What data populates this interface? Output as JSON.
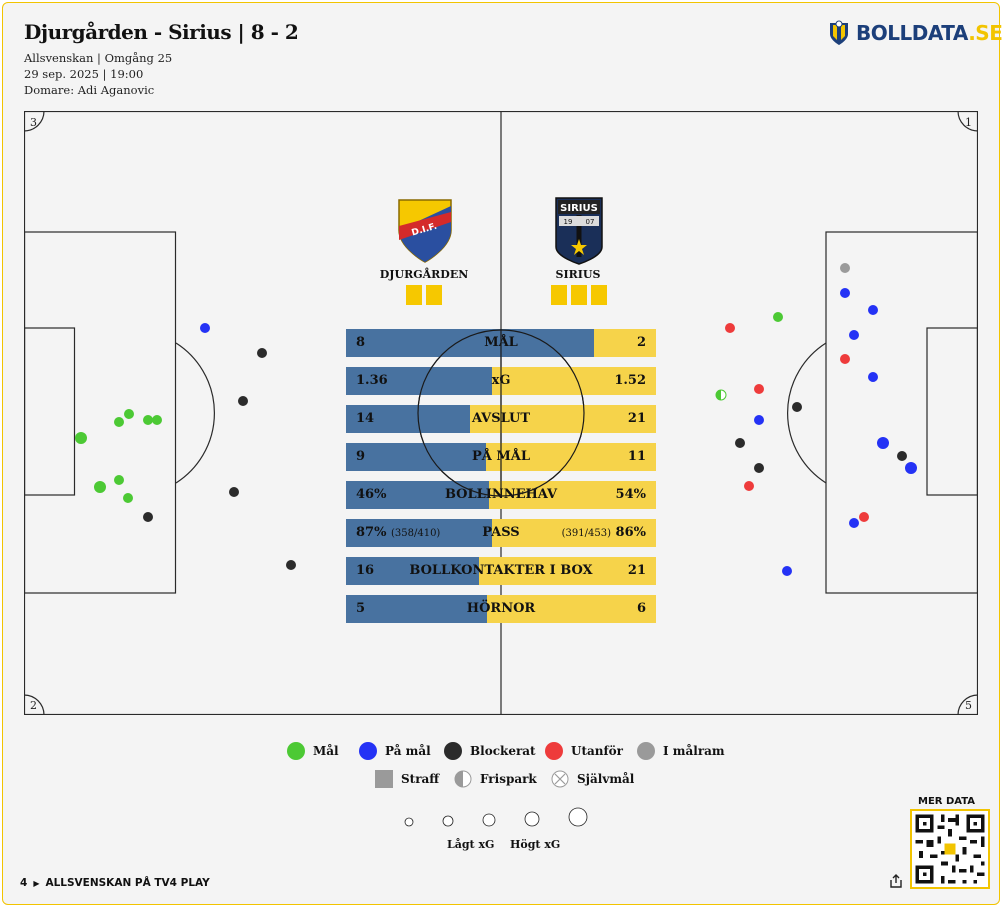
{
  "header": {
    "title": "Djurgården - Sirius | 8 - 2",
    "competition": "Allsvenskan | Omgång 25",
    "datetime": "29 sep. 2025 | 19:00",
    "referee": "Domare: Adi Aganovic"
  },
  "brand": {
    "name": "BOLLDATA",
    "tld": ".SE",
    "color": "#1c3f7a",
    "accent": "#f2c400"
  },
  "teams": {
    "home": {
      "name": "DJURGÅRDEN",
      "badge_text": "D.I.F.",
      "yellow_cards": 2,
      "color": "#4872a0"
    },
    "away": {
      "name": "SIRIUS",
      "badge_text": "SIRIUS",
      "badge_year_left": "19",
      "badge_year_right": "07",
      "yellow_cards": 3,
      "color": "#f6d34a"
    }
  },
  "corners": {
    "top_left": "3",
    "top_right": "1",
    "bottom_left": "2",
    "bottom_right": "5"
  },
  "stats": [
    {
      "label": "MÅL",
      "home": "8",
      "away": "2",
      "home_share": 0.8
    },
    {
      "label": "xG",
      "home": "1.36",
      "away": "1.52",
      "home_share": 0.47
    },
    {
      "label": "AVSLUT",
      "home": "14",
      "away": "21",
      "home_share": 0.4
    },
    {
      "label": "PÅ MÅL",
      "home": "9",
      "away": "11",
      "home_share": 0.45
    },
    {
      "label": "BOLLINNEHAV",
      "home": "46%",
      "away": "54%",
      "home_share": 0.46
    },
    {
      "label": "PASS",
      "home": "87%",
      "home_detail": "(358/410)",
      "away": "86%",
      "away_detail": "(391/453)",
      "home_share": 0.47
    },
    {
      "label": "BOLLKONTAKTER I BOX",
      "home": "16",
      "away": "21",
      "home_share": 0.43
    },
    {
      "label": "HÖRNOR",
      "home": "5",
      "away": "6",
      "home_share": 0.455
    }
  ],
  "shot_colors": {
    "goal": "#4cc934",
    "on_target": "#2432f5",
    "blocked": "#2b2b2b",
    "off_target": "#ee3b3b",
    "woodwork": "#9a9a9a"
  },
  "legend": {
    "goal": "Mål",
    "on_target": "På mål",
    "blocked": "Blockerat",
    "off_target": "Utanför",
    "woodwork": "I målram",
    "penalty": "Straff",
    "free_kick": "Frispark",
    "own_goal": "Självmål",
    "low_xg": "Lågt xG",
    "high_xg": "Högt xG"
  },
  "footer": {
    "rank": "4",
    "text": "ALLSVENSKAN PÅ TV4 PLAY",
    "more_data": "MER DATA"
  }
}
